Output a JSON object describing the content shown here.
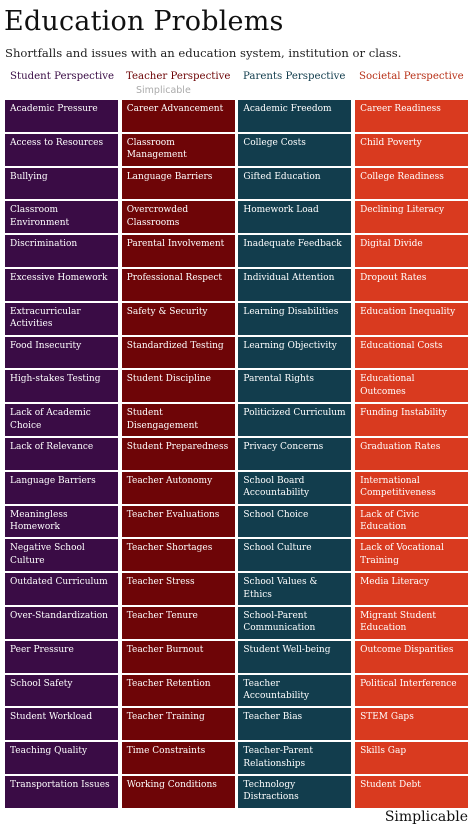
{
  "header": {
    "title": "Education Problems",
    "subtitle": "Shortfalls and issues with an education system, institution or class."
  },
  "watermark_top": "Simplicable",
  "footer": {
    "brand": "Simplicable"
  },
  "colors": {
    "student": "#3a0c45",
    "teacher": "#6e0507",
    "parents": "#123d4d",
    "societal": "#d93a1f"
  },
  "columns": [
    {
      "header": "Student Perspective",
      "items": [
        "Academic Pressure",
        "Access to Resources",
        "Bullying",
        "Classroom Environment",
        "Discrimination",
        "Excessive Homework",
        "Extracurricular Activities",
        "Food Insecurity",
        "High-stakes Testing",
        "Lack of Academic Choice",
        "Lack of Relevance",
        "Language Barriers",
        "Meaningless Homework",
        "Negative School Culture",
        "Outdated Curriculum",
        "Over-Standardization",
        "Peer Pressure",
        "School Safety",
        "Student Workload",
        "Teaching Quality",
        "Transportation Issues"
      ]
    },
    {
      "header": "Teacher Perspective",
      "items": [
        "Career Advancement",
        "Classroom Management",
        "Language Barriers",
        "Overcrowded Classrooms",
        "Parental Involvement",
        "Professional Respect",
        "Safety & Security",
        "Standardized Testing",
        "Student Discipline",
        "Student Disengagement",
        "Student Preparedness",
        "Teacher Autonomy",
        "Teacher Evaluations",
        "Teacher Shortages",
        "Teacher Stress",
        "Teacher Tenure",
        "Teacher Burnout",
        "Teacher Retention",
        "Teacher Training",
        "Time Constraints",
        "Working Conditions"
      ]
    },
    {
      "header": "Parents Perspective",
      "items": [
        "Academic Freedom",
        "College Costs",
        "Gifted Education",
        "Homework Load",
        "Inadequate Feedback",
        "Individual Attention",
        "Learning Disabilities",
        "Learning Objectivity",
        "Parental Rights",
        "Politicized Curriculum",
        "Privacy Concerns",
        "School Board Accountability",
        "School Choice",
        "School Culture",
        "School Values & Ethics",
        "School-Parent Communication",
        "Student Well-being",
        "Teacher Accountability",
        "Teacher Bias",
        "Teacher-Parent Relationships",
        "Technology Distractions"
      ]
    },
    {
      "header": "Societal Perspective",
      "items": [
        "Career Readiness",
        "Child Poverty",
        "College Readiness",
        "Declining Literacy",
        "Digital Divide",
        "Dropout Rates",
        "Education Inequality",
        "Educational Costs",
        "Educational Outcomes",
        "Funding Instability",
        "Graduation Rates",
        "International Competitiveness",
        "Lack of Civic Education",
        "Lack of Vocational Training",
        "Media Literacy",
        "Migrant Student Education",
        "Outcome Disparities",
        "Political Interference",
        "STEM Gaps",
        "Skills Gap",
        "Student Debt"
      ]
    }
  ]
}
